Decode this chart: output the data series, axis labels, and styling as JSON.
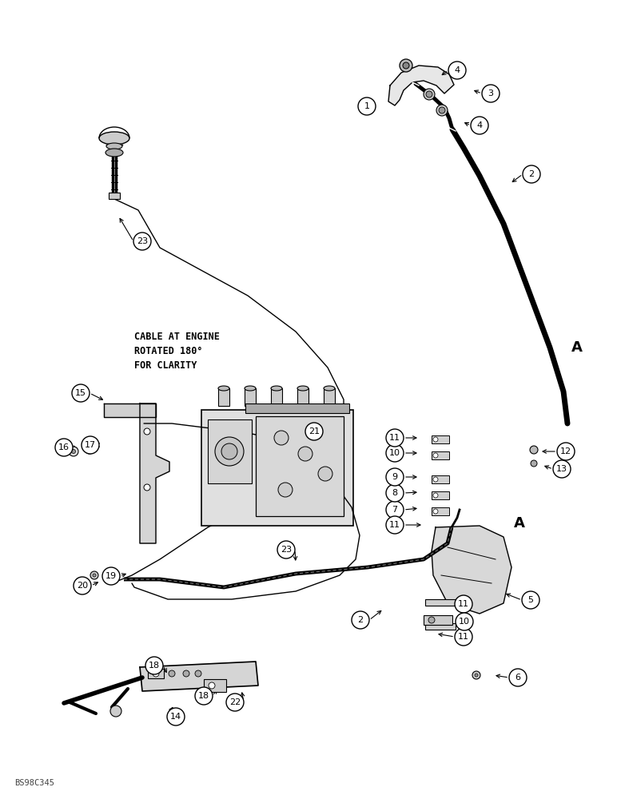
{
  "bg_color": "#ffffff",
  "fig_width": 7.72,
  "fig_height": 10.0,
  "dpi": 100,
  "watermark": "BS98C345",
  "annotation_note": "CABLE AT ENGINE\nROTATED 180°\nFOR CLARITY",
  "label_A1": [
    715,
    435
  ],
  "label_A2": [
    643,
    655
  ],
  "circle_labels": [
    [
      459,
      133,
      "1"
    ],
    [
      665,
      218,
      "2"
    ],
    [
      614,
      117,
      "3"
    ],
    [
      572,
      88,
      "4"
    ],
    [
      600,
      157,
      "4"
    ],
    [
      664,
      751,
      "5"
    ],
    [
      648,
      848,
      "6"
    ],
    [
      494,
      638,
      "7"
    ],
    [
      494,
      617,
      "8"
    ],
    [
      494,
      597,
      "9"
    ],
    [
      494,
      567,
      "10"
    ],
    [
      494,
      548,
      "11"
    ],
    [
      494,
      657,
      "11"
    ],
    [
      580,
      756,
      "11"
    ],
    [
      580,
      797,
      "11"
    ],
    [
      708,
      565,
      "12"
    ],
    [
      703,
      587,
      "13"
    ],
    [
      220,
      897,
      "14"
    ],
    [
      101,
      492,
      "15"
    ],
    [
      80,
      560,
      "16"
    ],
    [
      113,
      557,
      "17"
    ],
    [
      193,
      833,
      "18"
    ],
    [
      255,
      871,
      "18"
    ],
    [
      139,
      721,
      "19"
    ],
    [
      103,
      733,
      "20"
    ],
    [
      393,
      540,
      "21"
    ],
    [
      294,
      879,
      "22"
    ],
    [
      178,
      302,
      "23"
    ],
    [
      358,
      688,
      "23"
    ],
    [
      451,
      776,
      "2"
    ],
    [
      581,
      778,
      "10"
    ]
  ],
  "leader_lines": [
    [
      448,
      133,
      470,
      128
    ],
    [
      654,
      218,
      638,
      230
    ],
    [
      603,
      117,
      590,
      112
    ],
    [
      561,
      88,
      550,
      96
    ],
    [
      589,
      157,
      578,
      152
    ],
    [
      653,
      751,
      630,
      742
    ],
    [
      637,
      848,
      617,
      845
    ],
    [
      505,
      638,
      525,
      636
    ],
    [
      505,
      617,
      525,
      616
    ],
    [
      505,
      597,
      525,
      597
    ],
    [
      505,
      567,
      525,
      567
    ],
    [
      505,
      548,
      525,
      548
    ],
    [
      505,
      657,
      530,
      657
    ],
    [
      569,
      756,
      545,
      752
    ],
    [
      569,
      797,
      545,
      793
    ],
    [
      697,
      565,
      675,
      565
    ],
    [
      692,
      587,
      678,
      582
    ],
    [
      209,
      897,
      218,
      882
    ],
    [
      112,
      492,
      132,
      502
    ],
    [
      91,
      560,
      100,
      562
    ],
    [
      124,
      557,
      116,
      557
    ],
    [
      204,
      833,
      210,
      845
    ],
    [
      266,
      871,
      273,
      860
    ],
    [
      150,
      721,
      161,
      717
    ],
    [
      114,
      733,
      126,
      727
    ],
    [
      404,
      540,
      420,
      537
    ],
    [
      305,
      879,
      302,
      863
    ],
    [
      167,
      302,
      148,
      270
    ],
    [
      369,
      688,
      370,
      705
    ],
    [
      462,
      776,
      480,
      762
    ],
    [
      592,
      778,
      572,
      768
    ]
  ]
}
